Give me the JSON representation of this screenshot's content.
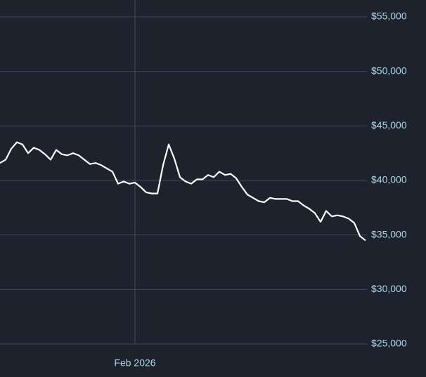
{
  "chart_data": {
    "type": "line",
    "categories": [
      null,
      null,
      null,
      null,
      null,
      null,
      null,
      null,
      null,
      null,
      null,
      null,
      null,
      null,
      null,
      null,
      null,
      null,
      null,
      null,
      null,
      null,
      null,
      null,
      "Feb 2026",
      null,
      null,
      null,
      null,
      null,
      null,
      null,
      null,
      null,
      null,
      null,
      null,
      null,
      null,
      null,
      null,
      null,
      null,
      null,
      null,
      null,
      null,
      null,
      null,
      null,
      null,
      null,
      null,
      null,
      null,
      null,
      null,
      null,
      null,
      null,
      null,
      null,
      null,
      null,
      null,
      null
    ],
    "series": [
      {
        "color": "#ffffff",
        "values": [
          41600,
          41900,
          42900,
          43500,
          43300,
          42500,
          43000,
          42800,
          42400,
          41900,
          42800,
          42400,
          42300,
          42500,
          42300,
          41900,
          41500,
          41600,
          41400,
          41100,
          40800,
          39700,
          39900,
          39700,
          39800,
          39400,
          38900,
          38800,
          38800,
          41400,
          43300,
          42000,
          40300,
          39900,
          39700,
          40100,
          40100,
          40500,
          40300,
          40800,
          40500,
          40600,
          40200,
          39400,
          38700,
          38400,
          38100,
          38000,
          38400,
          38300,
          38300,
          38300,
          38100,
          38100,
          37700,
          37400,
          37000,
          36200,
          37200,
          36700,
          36800,
          36700,
          36500,
          36100,
          34900,
          34500
        ]
      }
    ],
    "ylim": [
      25000,
      55000
    ],
    "yticks": [
      {
        "value": 25000,
        "label": "$25,000"
      },
      {
        "value": 30000,
        "label": "$30,000"
      },
      {
        "value": 35000,
        "label": "$35,000"
      },
      {
        "value": 40000,
        "label": "$40,000"
      },
      {
        "value": 45000,
        "label": "$45,000"
      },
      {
        "value": 50000,
        "label": "$50,000"
      },
      {
        "value": 55000,
        "label": "$55,000"
      }
    ],
    "grid": true
  }
}
